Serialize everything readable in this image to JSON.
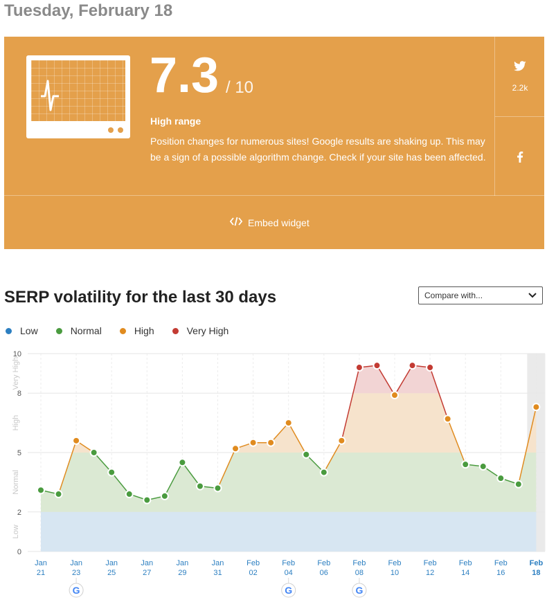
{
  "header": {
    "date": "Tuesday, February 18"
  },
  "score_card": {
    "score": "7.3",
    "max": "/ 10",
    "range_label": "High range",
    "description": "Position changes for numerous sites! Google results are shaking up. This may be a sign of a possible algorithm change. Check if your site has been affected.",
    "twitter_count": "2.2k",
    "embed_label": "Embed widget",
    "color": "#e4a04b"
  },
  "section": {
    "title": "SERP volatility for the last 30 days"
  },
  "compare": {
    "label": "Compare with..."
  },
  "legend": [
    {
      "label": "Low",
      "color": "#2c7fc1"
    },
    {
      "label": "Normal",
      "color": "#4a9b3f"
    },
    {
      "label": "High",
      "color": "#e08b1f"
    },
    {
      "label": "Very High",
      "color": "#c33b33"
    }
  ],
  "chart_data": {
    "type": "area",
    "dates": [
      "Jan 21",
      "Jan 22",
      "Jan 23",
      "Jan 24",
      "Jan 25",
      "Jan 26",
      "Jan 27",
      "Jan 28",
      "Jan 29",
      "Jan 30",
      "Jan 31",
      "Feb 01",
      "Feb 02",
      "Feb 03",
      "Feb 04",
      "Feb 05",
      "Feb 06",
      "Feb 07",
      "Feb 08",
      "Feb 09",
      "Feb 10",
      "Feb 11",
      "Feb 12",
      "Feb 13",
      "Feb 14",
      "Feb 15",
      "Feb 16",
      "Feb 17",
      "Feb 18"
    ],
    "values": [
      3.1,
      2.9,
      5.6,
      5.0,
      4.0,
      2.9,
      2.6,
      2.8,
      4.5,
      3.3,
      3.2,
      5.2,
      5.5,
      5.5,
      6.5,
      4.9,
      4.0,
      5.6,
      9.3,
      9.4,
      7.9,
      9.4,
      9.3,
      6.7,
      4.4,
      4.3,
      3.7,
      3.4,
      7.3
    ],
    "tick_labels": [
      {
        "month": "Jan",
        "day": "21"
      },
      {
        "month": "Jan",
        "day": "23"
      },
      {
        "month": "Jan",
        "day": "25"
      },
      {
        "month": "Jan",
        "day": "27"
      },
      {
        "month": "Jan",
        "day": "29"
      },
      {
        "month": "Jan",
        "day": "31"
      },
      {
        "month": "Feb",
        "day": "02"
      },
      {
        "month": "Feb",
        "day": "04"
      },
      {
        "month": "Feb",
        "day": "06"
      },
      {
        "month": "Feb",
        "day": "08"
      },
      {
        "month": "Feb",
        "day": "10"
      },
      {
        "month": "Feb",
        "day": "12"
      },
      {
        "month": "Feb",
        "day": "14"
      },
      {
        "month": "Feb",
        "day": "16"
      },
      {
        "month": "Feb",
        "day": "18"
      }
    ],
    "y_ticks": [
      "0",
      "2",
      "5",
      "8",
      "10"
    ],
    "bands": [
      {
        "label": "Low",
        "from": 0,
        "to": 2,
        "fill": "#d7e6f2"
      },
      {
        "label": "Normal",
        "from": 2,
        "to": 5,
        "fill": "#dbe9d3"
      },
      {
        "label": "High",
        "from": 5,
        "to": 8,
        "fill": "#f6e3cc"
      },
      {
        "label": "Very High",
        "from": 8,
        "to": 10,
        "fill": "#f2d4d4"
      }
    ],
    "google_update_dates": [
      "Jan 23",
      "Feb 04",
      "Feb 08"
    ],
    "highlighted_date": "Feb 18",
    "ylim": [
      0,
      10
    ],
    "grid": true
  }
}
